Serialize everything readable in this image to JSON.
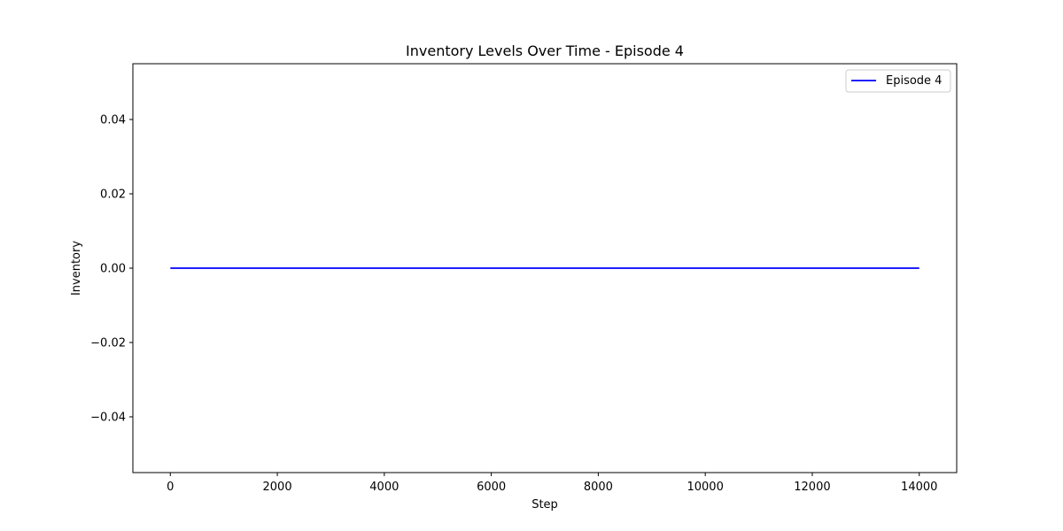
{
  "chart_data": {
    "type": "line",
    "title": "Inventory Levels Over Time - Episode 4",
    "xlabel": "Step",
    "ylabel": "Inventory",
    "xlim": [
      -700,
      14700
    ],
    "ylim": [
      -0.055,
      0.055
    ],
    "x_ticks": [
      0,
      2000,
      4000,
      6000,
      8000,
      10000,
      12000,
      14000
    ],
    "x_tick_labels": [
      "0",
      "2000",
      "4000",
      "6000",
      "8000",
      "10000",
      "12000",
      "14000"
    ],
    "y_ticks": [
      -0.04,
      -0.02,
      0.0,
      0.02,
      0.04
    ],
    "y_tick_labels": [
      "−0.04",
      "−0.02",
      "0.00",
      "0.02",
      "0.04"
    ],
    "grid": false,
    "legend_position": "top-right",
    "series": [
      {
        "name": "Episode 4",
        "color": "#0000ff",
        "x": [
          0,
          14000
        ],
        "y": [
          0,
          0
        ]
      }
    ]
  }
}
